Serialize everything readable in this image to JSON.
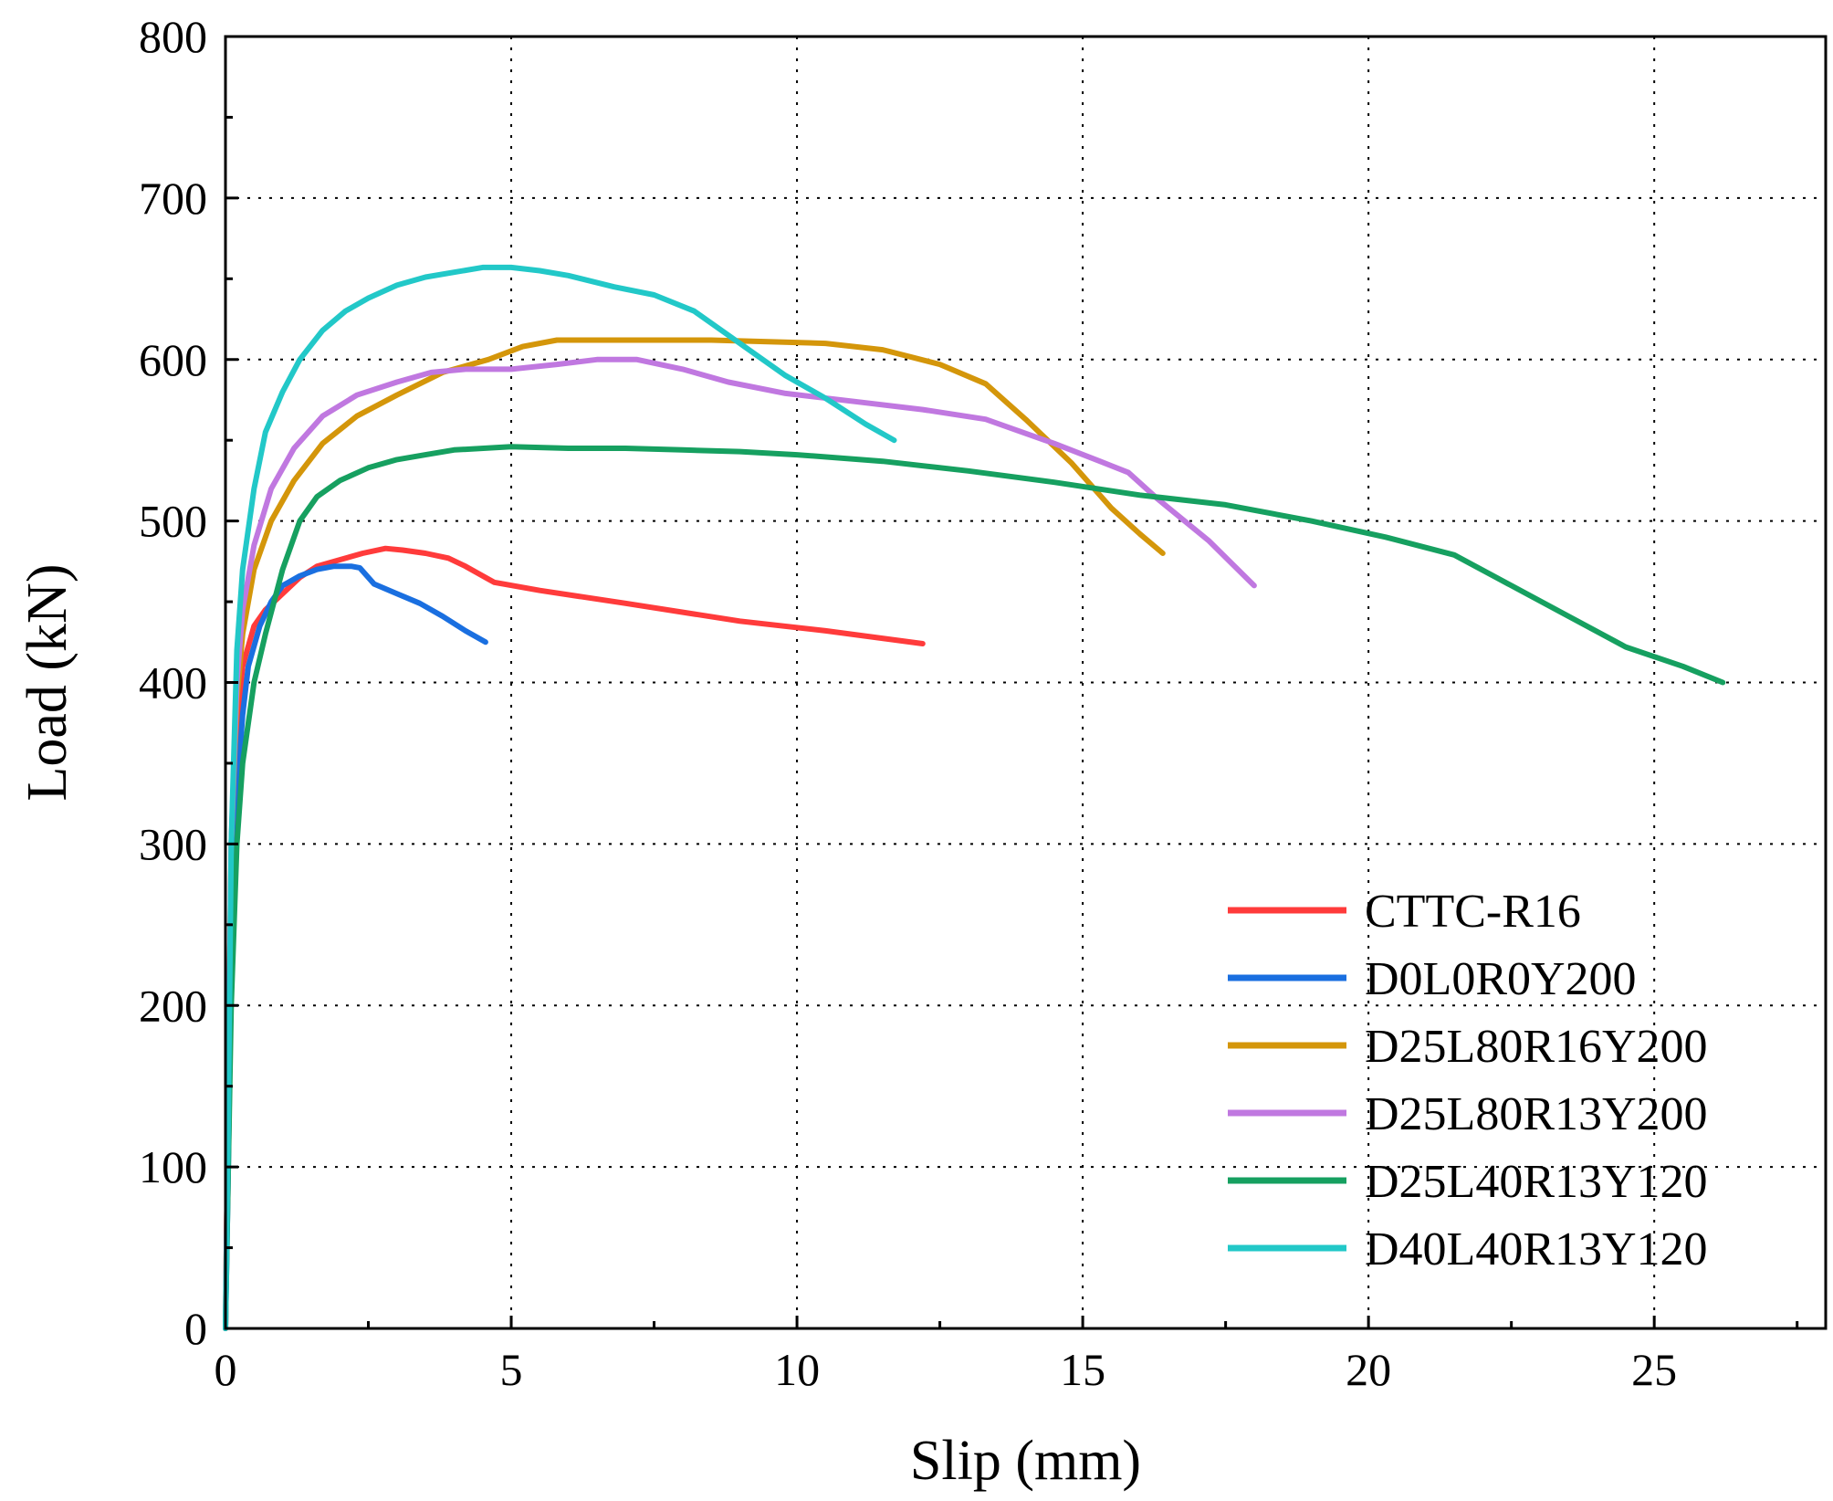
{
  "chart_data": {
    "type": "line",
    "title": "",
    "xlabel": "Slip (mm)",
    "ylabel": "Load (kN)",
    "xlim": [
      0,
      28
    ],
    "ylim": [
      0,
      800
    ],
    "xticks": [
      0,
      5,
      10,
      15,
      20,
      25
    ],
    "yticks": [
      0,
      100,
      200,
      300,
      400,
      500,
      600,
      700,
      800
    ],
    "grid": true,
    "legend_position": "bottom-right",
    "series": [
      {
        "name": "CTTC-R16",
        "color": "#ff3b3b",
        "x": [
          0,
          0.05,
          0.1,
          0.2,
          0.3,
          0.5,
          0.7,
          1.0,
          1.3,
          1.6,
          2.0,
          2.4,
          2.8,
          3.1,
          3.5,
          3.9,
          4.2,
          4.5,
          4.7,
          5.5,
          7.0,
          9.0,
          10.5,
          12.2
        ],
        "y": [
          0,
          150,
          270,
          370,
          410,
          435,
          445,
          455,
          465,
          472,
          476,
          480,
          483,
          482,
          480,
          477,
          472,
          466,
          462,
          457,
          449,
          438,
          432,
          424
        ]
      },
      {
        "name": "D0L0R0Y200",
        "color": "#1a6fe0",
        "x": [
          0,
          0.05,
          0.1,
          0.2,
          0.3,
          0.4,
          0.6,
          0.8,
          1.0,
          1.3,
          1.6,
          1.9,
          2.2,
          2.35,
          2.6,
          3.0,
          3.4,
          3.8,
          4.2,
          4.55
        ],
        "y": [
          0,
          100,
          230,
          330,
          380,
          410,
          435,
          450,
          460,
          466,
          470,
          472,
          472,
          471,
          461,
          455,
          449,
          441,
          432,
          425
        ]
      },
      {
        "name": "D25L80R16Y200",
        "color": "#d4960a",
        "x": [
          0,
          0.05,
          0.1,
          0.2,
          0.3,
          0.5,
          0.8,
          1.2,
          1.7,
          2.3,
          3.0,
          3.8,
          4.6,
          5.2,
          5.8,
          6.5,
          7.5,
          8.5,
          9.5,
          10.5,
          11.5,
          12.5,
          13.3,
          14.0,
          14.8,
          15.5,
          16.0,
          16.4
        ],
        "y": [
          0,
          150,
          300,
          390,
          430,
          470,
          500,
          525,
          548,
          565,
          578,
          592,
          600,
          608,
          612,
          612,
          612,
          612,
          611,
          610,
          606,
          597,
          585,
          563,
          536,
          508,
          492,
          480
        ]
      },
      {
        "name": "D25L80R13Y200",
        "color": "#c078e0",
        "x": [
          0,
          0.05,
          0.1,
          0.2,
          0.3,
          0.5,
          0.8,
          1.2,
          1.7,
          2.3,
          3.0,
          3.6,
          4.2,
          5.0,
          5.8,
          6.5,
          7.2,
          8.0,
          8.8,
          9.8,
          11.0,
          12.2,
          13.3,
          14.5,
          15.3,
          15.8,
          16.3,
          17.2,
          18.0
        ],
        "y": [
          0,
          150,
          300,
          400,
          445,
          485,
          520,
          545,
          565,
          578,
          586,
          592,
          594,
          594,
          597,
          600,
          600,
          594,
          586,
          579,
          574,
          569,
          563,
          548,
          537,
          530,
          514,
          488,
          460
        ]
      },
      {
        "name": "D25L40R13Y120",
        "color": "#16a060",
        "x": [
          0,
          0.05,
          0.1,
          0.2,
          0.3,
          0.5,
          0.7,
          1.0,
          1.3,
          1.6,
          2.0,
          2.5,
          3.0,
          3.5,
          4.0,
          5.0,
          6.0,
          7.0,
          8.0,
          9.0,
          10.0,
          11.5,
          13.0,
          14.5,
          16.0,
          17.5,
          19.0,
          20.3,
          21.5,
          22.5,
          23.5,
          24.5,
          25.5,
          26.2
        ],
        "y": [
          0,
          100,
          200,
          300,
          350,
          400,
          430,
          470,
          500,
          515,
          525,
          533,
          538,
          541,
          544,
          546,
          545,
          545,
          544,
          543,
          541,
          537,
          531,
          524,
          516,
          510,
          500,
          490,
          479,
          460,
          441,
          422,
          410,
          400
        ]
      },
      {
        "name": "D40L40R13Y120",
        "color": "#22c8c8",
        "x": [
          0,
          0.05,
          0.1,
          0.2,
          0.3,
          0.5,
          0.7,
          1.0,
          1.3,
          1.7,
          2.1,
          2.5,
          3.0,
          3.5,
          4.0,
          4.5,
          5.0,
          5.5,
          6.0,
          6.8,
          7.5,
          8.2,
          9.0,
          9.8,
          10.5,
          11.2,
          11.7
        ],
        "y": [
          0,
          130,
          300,
          420,
          470,
          520,
          555,
          580,
          600,
          618,
          630,
          638,
          646,
          651,
          654,
          657,
          657,
          655,
          652,
          645,
          640,
          630,
          610,
          590,
          576,
          560,
          550
        ]
      }
    ]
  }
}
